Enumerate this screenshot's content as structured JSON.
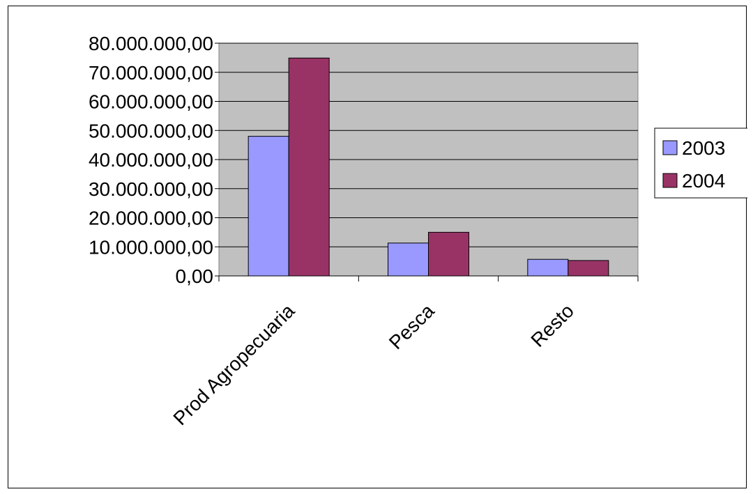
{
  "chart_data": {
    "type": "bar",
    "categories": [
      "Prod Agropecuaria",
      "Pesca",
      "Resto"
    ],
    "series": [
      {
        "name": "2003",
        "color": "#9999ff",
        "values": [
          48000000,
          11300000,
          5700000
        ]
      },
      {
        "name": "2004",
        "color": "#993366",
        "values": [
          74900000,
          15000000,
          5300000
        ]
      }
    ],
    "y_ticks": [
      "0,00",
      "10.000.000,00",
      "20.000.000,00",
      "30.000.000,00",
      "40.000.000,00",
      "50.000.000,00",
      "60.000.000,00",
      "70.000.000,00",
      "80.000.000,00"
    ],
    "ylim": [
      0,
      80000000
    ],
    "y_step": 10000000,
    "plot_background": "#c0c0c0",
    "grid": true,
    "legend_position": "right"
  }
}
